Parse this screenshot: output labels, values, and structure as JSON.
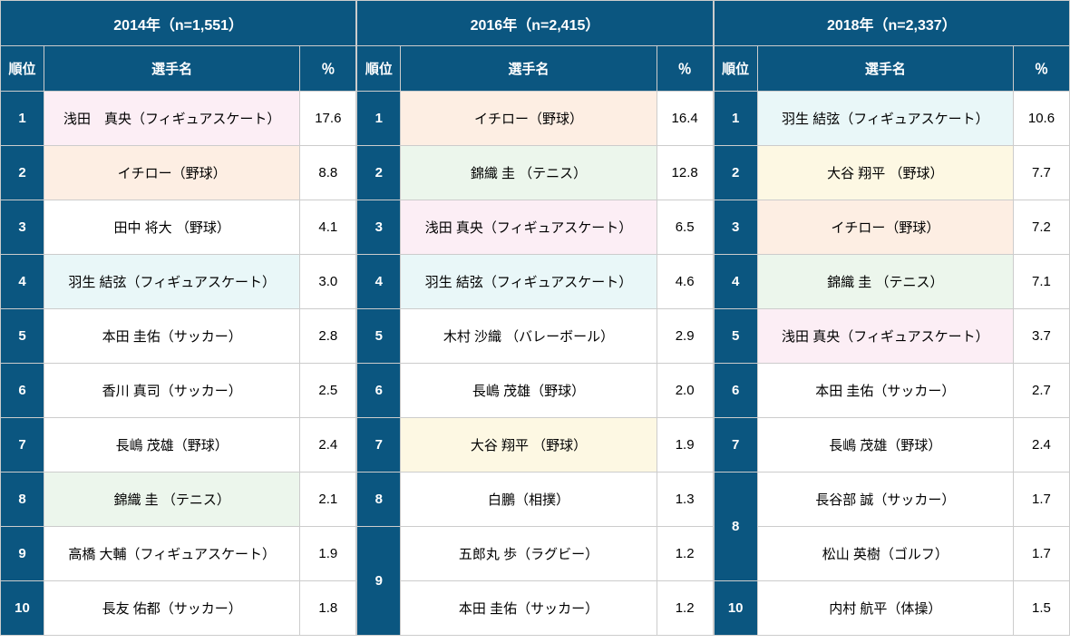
{
  "colors": {
    "header_bg": "#0b5680",
    "header_fg": "#ffffff",
    "border": "#cccccc",
    "hl_pink": "#fceef5",
    "hl_peach": "#fdeee3",
    "hl_cyan": "#e9f7f8",
    "hl_green": "#ecf6ec",
    "hl_cream": "#fdf8e3",
    "row_bg": "#ffffff"
  },
  "sub_headers": {
    "rank": "順位",
    "name": "選手名",
    "pct": "％"
  },
  "years": [
    {
      "header": "2014年（n=1,551）",
      "rows": [
        {
          "rank": "1",
          "name": "浅田　真央（フィギュアスケート）",
          "pct": "17.6",
          "hl": "pink"
        },
        {
          "rank": "2",
          "name": "イチロー（野球）",
          "pct": "8.8",
          "hl": "peach"
        },
        {
          "rank": "3",
          "name": "田中 将大 （野球）",
          "pct": "4.1",
          "hl": ""
        },
        {
          "rank": "4",
          "name": "羽生 結弦（フィギュアスケート）",
          "pct": "3.0",
          "hl": "cyan"
        },
        {
          "rank": "5",
          "name": "本田 圭佑（サッカー）",
          "pct": "2.8",
          "hl": ""
        },
        {
          "rank": "6",
          "name": "香川 真司（サッカー）",
          "pct": "2.5",
          "hl": ""
        },
        {
          "rank": "7",
          "name": "長嶋 茂雄（野球）",
          "pct": "2.4",
          "hl": ""
        },
        {
          "rank": "8",
          "name": "錦織 圭 （テニス）",
          "pct": "2.1",
          "hl": "green"
        },
        {
          "rank": "9",
          "name": "高橋 大輔（フィギュアスケート）",
          "pct": "1.9",
          "hl": ""
        },
        {
          "rank": "10",
          "name": "長友 佑都（サッカー）",
          "pct": "1.8",
          "hl": ""
        }
      ]
    },
    {
      "header": "2016年（n=2,415）",
      "rows": [
        {
          "rank": "1",
          "name": "イチロー（野球）",
          "pct": "16.4",
          "hl": "peach"
        },
        {
          "rank": "2",
          "name": "錦織 圭 （テニス）",
          "pct": "12.8",
          "hl": "green"
        },
        {
          "rank": "3",
          "name": "浅田 真央（フィギュアスケート）",
          "pct": "6.5",
          "hl": "pink"
        },
        {
          "rank": "4",
          "name": "羽生 結弦（フィギュアスケート）",
          "pct": "4.6",
          "hl": "cyan"
        },
        {
          "rank": "5",
          "name": "木村 沙織 （バレーボール）",
          "pct": "2.9",
          "hl": ""
        },
        {
          "rank": "6",
          "name": "長嶋 茂雄（野球）",
          "pct": "2.0",
          "hl": ""
        },
        {
          "rank": "7",
          "name": "大谷 翔平 （野球）",
          "pct": "1.9",
          "hl": "cream"
        },
        {
          "rank": "8",
          "name": "白鵬（相撲）",
          "pct": "1.3",
          "hl": ""
        },
        {
          "rank": "9",
          "rank_rowspan": 2,
          "name": "五郎丸 歩（ラグビー）",
          "pct": "1.2",
          "hl": ""
        },
        {
          "rank": "",
          "rank_skip": true,
          "name": "本田 圭佑（サッカー）",
          "pct": "1.2",
          "hl": ""
        }
      ]
    },
    {
      "header": "2018年（n=2,337）",
      "rows": [
        {
          "rank": "1",
          "name": "羽生 結弦（フィギュアスケート）",
          "pct": "10.6",
          "hl": "cyan"
        },
        {
          "rank": "2",
          "name": "大谷 翔平 （野球）",
          "pct": "7.7",
          "hl": "cream"
        },
        {
          "rank": "3",
          "name": "イチロー（野球）",
          "pct": "7.2",
          "hl": "peach"
        },
        {
          "rank": "4",
          "name": "錦織 圭 （テニス）",
          "pct": "7.1",
          "hl": "green"
        },
        {
          "rank": "5",
          "name": "浅田 真央（フィギュアスケート）",
          "pct": "3.7",
          "hl": "pink"
        },
        {
          "rank": "6",
          "name": "本田 圭佑（サッカー）",
          "pct": "2.7",
          "hl": ""
        },
        {
          "rank": "7",
          "name": "長嶋 茂雄（野球）",
          "pct": "2.4",
          "hl": ""
        },
        {
          "rank": "8",
          "rank_rowspan": 2,
          "name": "長谷部 誠（サッカー）",
          "pct": "1.7",
          "hl": ""
        },
        {
          "rank": "",
          "rank_skip": true,
          "name": "松山 英樹（ゴルフ）",
          "pct": "1.7",
          "hl": ""
        },
        {
          "rank": "10",
          "name": "内村 航平（体操）",
          "pct": "1.5",
          "hl": ""
        }
      ]
    }
  ]
}
